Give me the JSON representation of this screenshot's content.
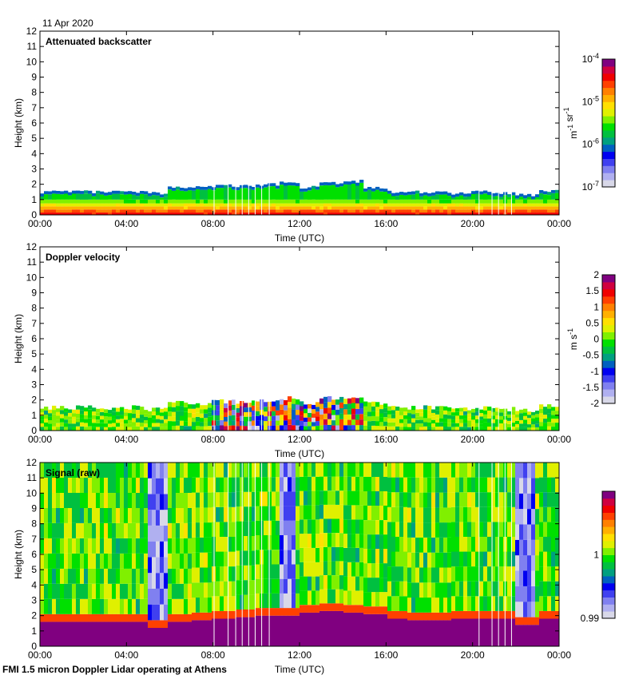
{
  "date_label": "11 Apr 2020",
  "footer": "FMI 1.5 micron Doppler Lidar operating at Athens",
  "colors": {
    "scale": [
      "#d8d8e8",
      "#b0b0f0",
      "#8080f0",
      "#4040f0",
      "#0000f0",
      "#0060c0",
      "#00a080",
      "#00c040",
      "#00e000",
      "#80f000",
      "#e0f000",
      "#ffe000",
      "#ffb000",
      "#ff8000",
      "#ff4000",
      "#f00000",
      "#d00040",
      "#800080"
    ],
    "saturated": "#800080"
  },
  "chart_data": [
    {
      "type": "heatmap",
      "title": "Attenuated backscatter",
      "xlabel": "Time (UTC)",
      "ylabel": "Height (km)",
      "xlim": [
        0,
        24
      ],
      "ylim": [
        0,
        12
      ],
      "xticks": [
        "00:00",
        "04:00",
        "08:00",
        "12:00",
        "16:00",
        "20:00",
        "00:00"
      ],
      "yticks": [
        "0",
        "1",
        "2",
        "3",
        "4",
        "5",
        "6",
        "7",
        "8",
        "9",
        "10",
        "11",
        "12"
      ],
      "colorbar": {
        "label": "m-1 sr-1",
        "ticks": [
          "10-4",
          "10-5",
          "10-6",
          "10-7"
        ],
        "scale": "log",
        "range": [
          1e-07,
          0.0001
        ]
      },
      "boundary_layer_top_km": [
        1.5,
        1.5,
        1.5,
        1.5,
        1.5,
        1.4,
        1.8,
        1.8,
        1.9,
        1.9,
        2.0,
        2.1,
        1.8,
        2.1,
        2.2,
        1.8,
        1.5,
        1.5,
        1.5,
        1.4,
        1.5,
        1.4,
        1.3,
        1.6
      ]
    },
    {
      "type": "heatmap",
      "title": "Doppler velocity",
      "xlabel": "Time (UTC)",
      "ylabel": "Height (km)",
      "xlim": [
        0,
        24
      ],
      "ylim": [
        0,
        12
      ],
      "xticks": [
        "00:00",
        "04:00",
        "08:00",
        "12:00",
        "16:00",
        "20:00",
        "00:00"
      ],
      "yticks": [
        "0",
        "1",
        "2",
        "3",
        "4",
        "5",
        "6",
        "7",
        "8",
        "9",
        "10",
        "11",
        "12"
      ],
      "colorbar": {
        "label": "m s-1",
        "ticks": [
          "2",
          "1.5",
          "1",
          "0.5",
          "0",
          "-0.5",
          "-1",
          "-1.5",
          "-2"
        ],
        "range": [
          -2,
          2
        ]
      },
      "boundary_layer_top_km": [
        1.5,
        1.5,
        1.5,
        1.5,
        1.5,
        1.4,
        1.8,
        1.8,
        1.9,
        1.9,
        2.0,
        2.1,
        1.8,
        2.1,
        2.2,
        1.8,
        1.5,
        1.5,
        1.5,
        1.4,
        1.5,
        1.4,
        1.3,
        1.6
      ]
    },
    {
      "type": "heatmap",
      "title": "Signal (raw)",
      "xlabel": "Time (UTC)",
      "ylabel": "Height (km)",
      "xlim": [
        0,
        24
      ],
      "ylim": [
        0,
        12
      ],
      "xticks": [
        "00:00",
        "04:00",
        "08:00",
        "12:00",
        "16:00",
        "20:00",
        "00:00"
      ],
      "yticks": [
        "0",
        "1",
        "2",
        "3",
        "4",
        "5",
        "6",
        "7",
        "8",
        "9",
        "10",
        "11",
        "12"
      ],
      "colorbar": {
        "label": "",
        "ticks": [
          "1",
          "0.99"
        ],
        "range": [
          0.99,
          1.01
        ]
      },
      "saturated_top_km": [
        1.6,
        1.6,
        1.6,
        1.6,
        1.6,
        1.2,
        1.6,
        1.7,
        1.8,
        1.9,
        2.0,
        2.0,
        2.2,
        2.3,
        2.2,
        2.1,
        1.8,
        1.7,
        1.7,
        1.8,
        1.8,
        1.8,
        1.4,
        1.8
      ],
      "low_signal_periods_h": [
        [
          5.0,
          6.0
        ],
        [
          11.0,
          11.9
        ],
        [
          22.0,
          22.9
        ]
      ]
    }
  ]
}
